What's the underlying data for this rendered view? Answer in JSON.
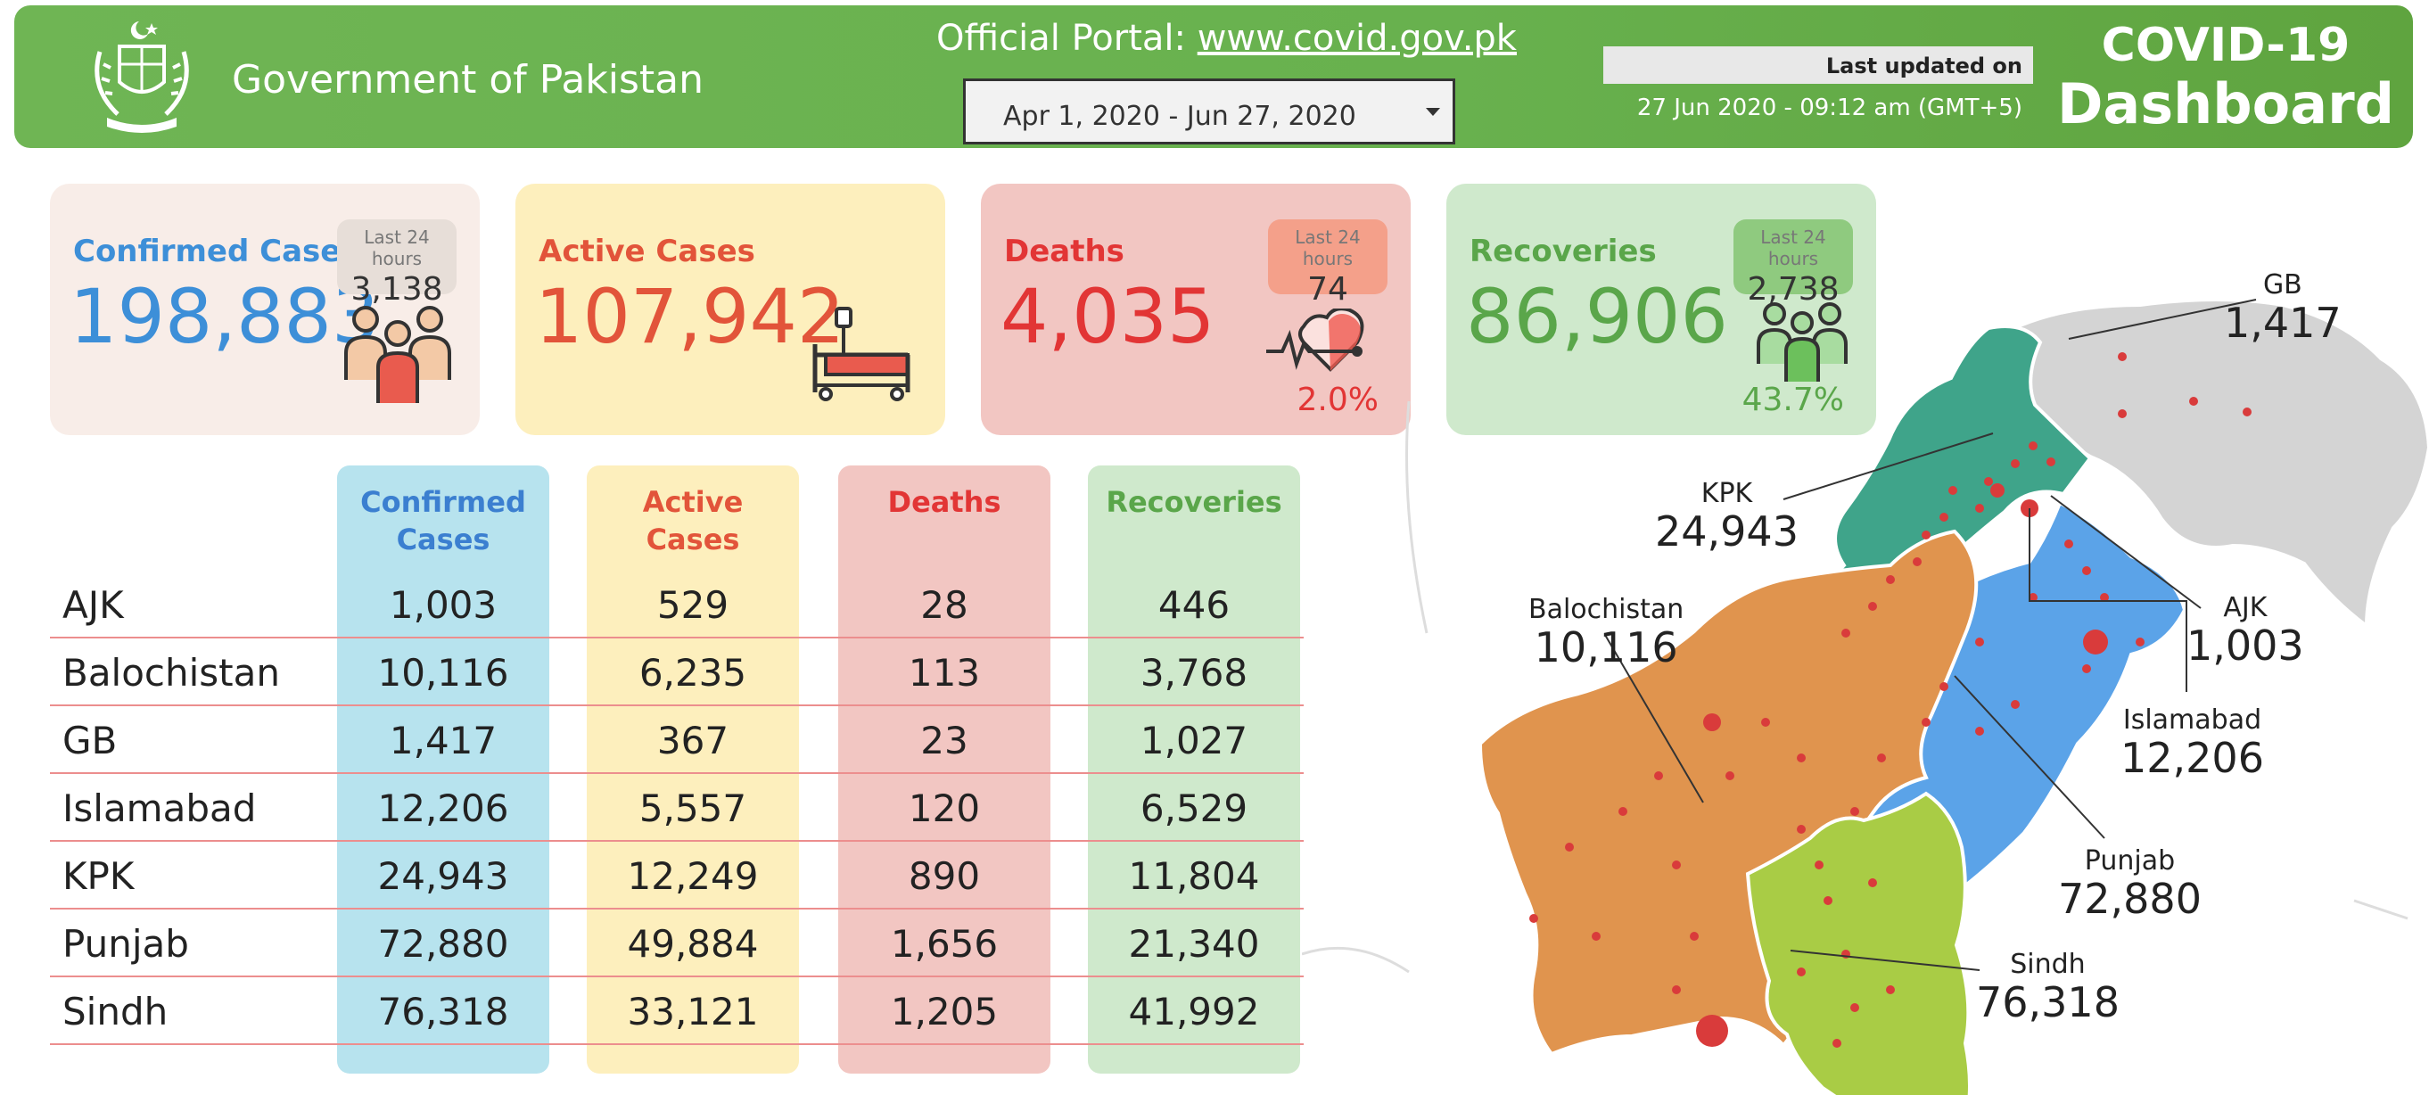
{
  "header": {
    "gov_title": "Government of Pakistan",
    "portal_label": "Official Portal: ",
    "portal_url": "www.covid.gov.pk",
    "date_range": "Apr 1, 2020 - Jun 27, 2020",
    "last_updated_label": "Last updated on",
    "last_updated_time": "27 Jun 2020 - 09:12 am (GMT+5)",
    "dashboard_line1": "COVID-19",
    "dashboard_line2": "Dashboard",
    "brand_color": "#68b14e"
  },
  "cards": {
    "confirmed": {
      "title": "Confirmed Cases",
      "value": "198,883",
      "badge_label": "Last 24 hours",
      "badge_value": "3,138",
      "color": "#3d8fd8",
      "icon": "people-group-icon"
    },
    "active": {
      "title": "Active Cases",
      "value": "107,942",
      "color": "#e2543a",
      "icon": "hospital-bed-icon"
    },
    "deaths": {
      "title": "Deaths",
      "value": "4,035",
      "badge_label": "Last 24 hours",
      "badge_value": "74",
      "percent": "2.0%",
      "color": "#e23535",
      "icon": "heartbeat-icon"
    },
    "recoveries": {
      "title": "Recoveries",
      "value": "86,906",
      "badge_label": "Last 24 hours",
      "badge_value": "2,738",
      "percent": "43.7%",
      "color": "#5aa64a",
      "icon": "recovered-people-icon"
    }
  },
  "table": {
    "headers": {
      "confirmed_1": "Confirmed",
      "confirmed_2": "Cases",
      "active_1": "Active",
      "active_2": "Cases",
      "deaths": "Deaths",
      "recoveries": "Recoveries"
    },
    "rows": [
      {
        "region": "AJK",
        "confirmed": "1,003",
        "active": "529",
        "deaths": "28",
        "recoveries": "446"
      },
      {
        "region": "Balochistan",
        "confirmed": "10,116",
        "active": "6,235",
        "deaths": "113",
        "recoveries": "3,768"
      },
      {
        "region": "GB",
        "confirmed": "1,417",
        "active": "367",
        "deaths": "23",
        "recoveries": "1,027"
      },
      {
        "region": "Islamabad",
        "confirmed": "12,206",
        "active": "5,557",
        "deaths": "120",
        "recoveries": "6,529"
      },
      {
        "region": "KPK",
        "confirmed": "24,943",
        "active": "12,249",
        "deaths": "890",
        "recoveries": "11,804"
      },
      {
        "region": "Punjab",
        "confirmed": "72,880",
        "active": "49,884",
        "deaths": "1,656",
        "recoveries": "21,340"
      },
      {
        "region": "Sindh",
        "confirmed": "76,318",
        "active": "33,121",
        "deaths": "1,205",
        "recoveries": "41,992"
      }
    ]
  },
  "map": {
    "labels": {
      "gb": {
        "name": "GB",
        "value": "1,417"
      },
      "kpk": {
        "name": "KPK",
        "value": "24,943"
      },
      "ajk": {
        "name": "AJK",
        "value": "1,003"
      },
      "balochistan": {
        "name": "Balochistan",
        "value": "10,116"
      },
      "islamabad": {
        "name": "Islamabad",
        "value": "12,206"
      },
      "punjab": {
        "name": "Punjab",
        "value": "72,880"
      },
      "sindh": {
        "name": "Sindh",
        "value": "76,318"
      }
    },
    "colors": {
      "gb": "#d4d4d4",
      "kpk": "#3fa48a",
      "punjab": "#5ba3e8",
      "balochistan": "#e0944e",
      "sindh": "#a9cc45",
      "dots": "#d93b3b"
    }
  }
}
